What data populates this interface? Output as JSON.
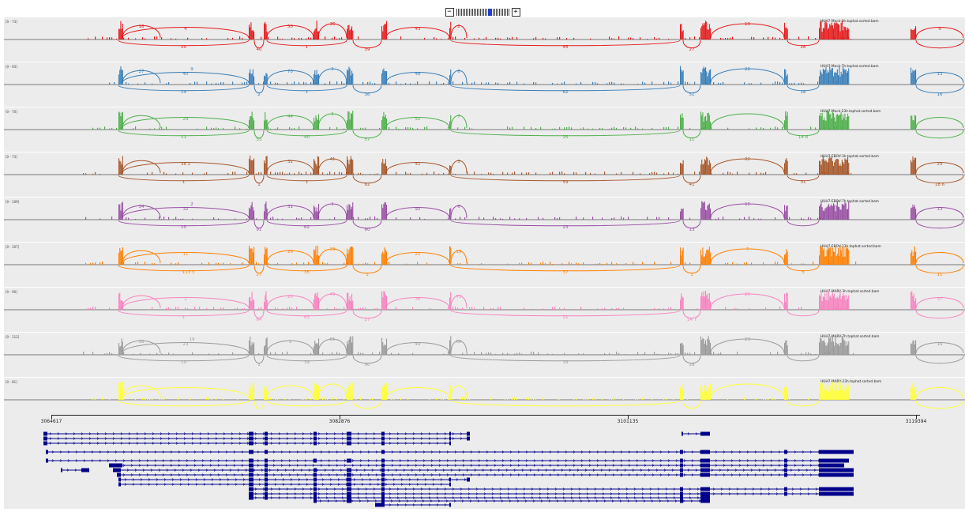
{
  "zoom": {
    "minus_label": "−",
    "plus_label": "+",
    "level_count": 32,
    "selected_level": 20
  },
  "tracks": [
    {
      "name": "HUH7-Mock-3h.tophat.sorted.bam",
      "range": "[0 - 73]",
      "color": "#e41a1c",
      "above": [
        "4",
        "50",
        "36",
        "43",
        "2",
        "19",
        "9",
        "16"
      ],
      "below": [
        "20",
        "40",
        "1",
        "39",
        "45",
        "27",
        "28"
      ]
    },
    {
      "name": "HUH7-Mock-7h.tophat.sorted.bam",
      "range": "[0 - 93]",
      "color": "#377eb8",
      "above": [
        "40",
        "70",
        "1",
        "48",
        "6",
        "22",
        "13",
        "27",
        "9"
      ],
      "below": [
        "14",
        "2",
        "1",
        "36",
        "62",
        "51",
        "18",
        "16"
      ]
    },
    {
      "name": "HUH7-Mock-23h.tophat.sorted.bam",
      "range": "[0 - 70]",
      "color": "#4daf4a",
      "above": [
        "29",
        "44",
        "1",
        "51",
        "7"
      ],
      "below": [
        "11",
        "55",
        "40",
        "57",
        "25",
        "11",
        "14 8"
      ]
    },
    {
      "name": "HUH7-EBOV-3h.tophat.sorted.bam",
      "range": "[0 - 73]",
      "color": "#a65628",
      "above": [
        "38 2",
        "31",
        "41",
        "42",
        "3",
        "22",
        "29"
      ],
      "below": [
        "1",
        "1",
        "1",
        "62",
        "59",
        "41",
        "31",
        "18 6"
      ]
    },
    {
      "name": "HUH7-EBOV-7h.tophat.sorted.bam",
      "range": "[0 - 109]",
      "color": "#984ea3",
      "above": [
        "32",
        "31",
        "1",
        "92",
        "6",
        "15",
        "13",
        "34",
        "2"
      ],
      "below": [
        "25",
        "91",
        "62",
        "80",
        "23",
        "13"
      ]
    },
    {
      "name": "HUH7-EBOV-23h.tophat.sorted.bam",
      "range": "[0 - 107]",
      "color": "#ff7f00",
      "above": [
        "11",
        "29",
        "23",
        "21",
        "18",
        "7"
      ],
      "below": [
        "1",
        "27",
        "35",
        "1",
        "37",
        "1",
        "5",
        "11",
        "13 5"
      ]
    },
    {
      "name": "HUH7-MARV-3h.tophat.sorted.bam",
      "range": "[0 - 90]",
      "color": "#f781bf",
      "above": [
        "2",
        "20",
        "43",
        "36",
        "73",
        "26",
        "37"
      ],
      "below": [
        "1",
        "64",
        "63",
        "27",
        "21",
        "14 7"
      ]
    },
    {
      "name": "HUH7-MARV-7h.tophat.sorted.bam",
      "range": "[0 - 112]",
      "color": "#999999",
      "above": [
        "23",
        "1",
        "61",
        "49",
        "60",
        "23",
        "16",
        "30",
        "19"
      ],
      "below": [
        "10",
        "1",
        "39",
        "90",
        "19",
        "29"
      ]
    },
    {
      "name": "HUH7-MARV-23h.tophat.sorted.bam",
      "range": "[0 - 81]",
      "color": "#ffff33",
      "above": [],
      "below": []
    }
  ],
  "ruler": {
    "ticks": [
      "3064617",
      "3082876",
      "3101135",
      "3119394"
    ]
  },
  "genes": {
    "color": "#00008b"
  }
}
